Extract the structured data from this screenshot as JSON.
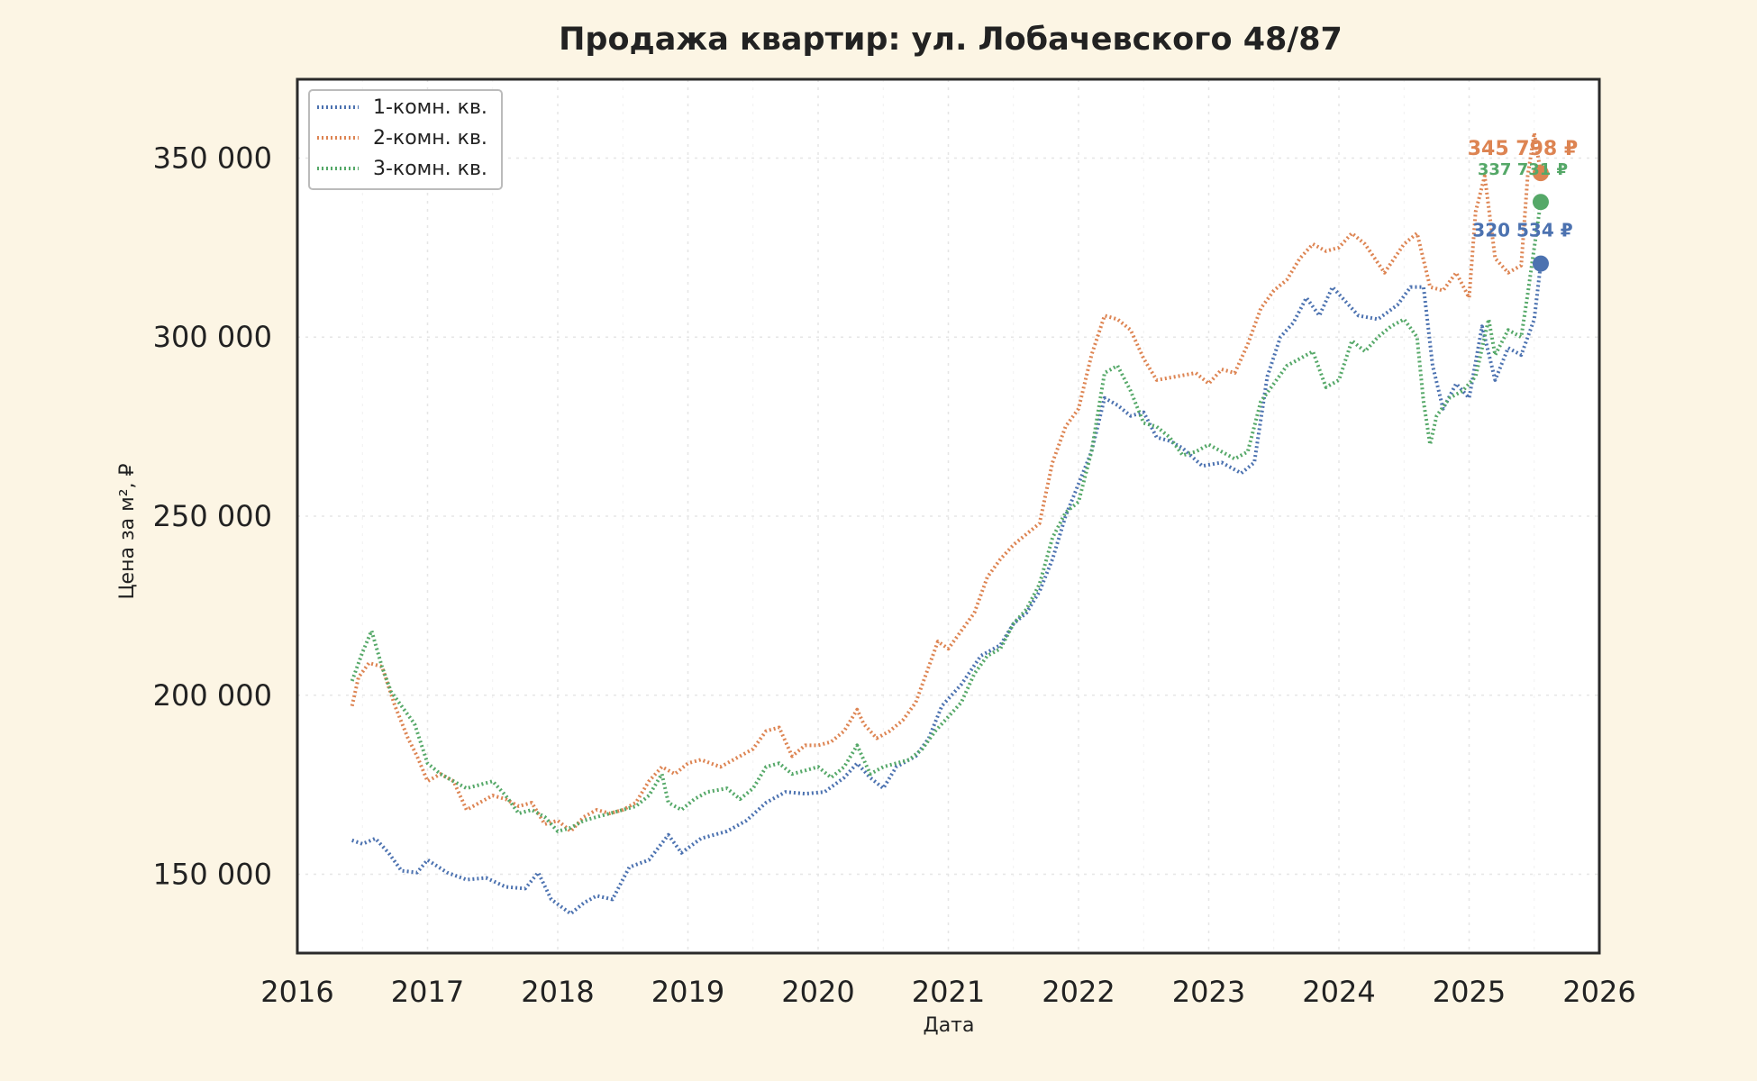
{
  "chart_data": {
    "type": "line",
    "title": "Продажа квартир: ул. Лобачевского 48/87",
    "xlabel": "Дата",
    "ylabel": "Цена за м², ₽",
    "xlim": [
      2016,
      2026
    ],
    "ylim": [
      128000,
      372000
    ],
    "x_ticks": [
      2016,
      2017,
      2018,
      2019,
      2020,
      2021,
      2022,
      2023,
      2024,
      2025,
      2026
    ],
    "y_ticks": [
      150000,
      200000,
      250000,
      300000,
      350000
    ],
    "y_tick_labels": [
      "150 000",
      "200 000",
      "250 000",
      "300 000",
      "350 000"
    ],
    "grid": true,
    "legend_position": "top-left",
    "line_style": "dotted",
    "series": [
      {
        "name": "1-комн. кв.",
        "color": "#4c72b0",
        "end_label": "320 534 ₽",
        "end_value": 320534,
        "points": [
          [
            2016.42,
            159500
          ],
          [
            2016.5,
            158500
          ],
          [
            2016.6,
            160000
          ],
          [
            2016.7,
            156000
          ],
          [
            2016.8,
            151000
          ],
          [
            2016.92,
            150500
          ],
          [
            2017.0,
            154000
          ],
          [
            2017.15,
            150500
          ],
          [
            2017.3,
            148500
          ],
          [
            2017.45,
            149000
          ],
          [
            2017.6,
            146500
          ],
          [
            2017.75,
            146000
          ],
          [
            2017.85,
            150500
          ],
          [
            2017.95,
            143000
          ],
          [
            2018.1,
            139000
          ],
          [
            2018.2,
            142000
          ],
          [
            2018.3,
            144000
          ],
          [
            2018.42,
            143000
          ],
          [
            2018.55,
            152000
          ],
          [
            2018.7,
            154000
          ],
          [
            2018.85,
            161000
          ],
          [
            2018.95,
            156000
          ],
          [
            2019.1,
            160000
          ],
          [
            2019.3,
            162000
          ],
          [
            2019.45,
            165000
          ],
          [
            2019.6,
            170000
          ],
          [
            2019.75,
            173000
          ],
          [
            2019.9,
            172500
          ],
          [
            2020.05,
            173000
          ],
          [
            2020.2,
            177000
          ],
          [
            2020.3,
            181000
          ],
          [
            2020.4,
            177000
          ],
          [
            2020.5,
            174000
          ],
          [
            2020.6,
            180000
          ],
          [
            2020.75,
            183000
          ],
          [
            2020.85,
            188000
          ],
          [
            2020.95,
            197000
          ],
          [
            2021.1,
            203000
          ],
          [
            2021.25,
            211000
          ],
          [
            2021.4,
            214000
          ],
          [
            2021.5,
            220000
          ],
          [
            2021.6,
            223000
          ],
          [
            2021.7,
            229000
          ],
          [
            2021.8,
            238000
          ],
          [
            2021.9,
            250000
          ],
          [
            2022.0,
            259000
          ],
          [
            2022.1,
            268000
          ],
          [
            2022.2,
            283000
          ],
          [
            2022.3,
            281000
          ],
          [
            2022.4,
            278000
          ],
          [
            2022.5,
            279000
          ],
          [
            2022.6,
            272000
          ],
          [
            2022.7,
            271000
          ],
          [
            2022.8,
            269000
          ],
          [
            2022.95,
            264000
          ],
          [
            2023.1,
            265000
          ],
          [
            2023.25,
            262000
          ],
          [
            2023.35,
            265000
          ],
          [
            2023.45,
            289000
          ],
          [
            2023.55,
            300000
          ],
          [
            2023.65,
            304000
          ],
          [
            2023.75,
            311000
          ],
          [
            2023.85,
            306000
          ],
          [
            2023.95,
            314000
          ],
          [
            2024.05,
            310000
          ],
          [
            2024.15,
            306000
          ],
          [
            2024.3,
            305000
          ],
          [
            2024.45,
            309000
          ],
          [
            2024.55,
            314000
          ],
          [
            2024.65,
            314000
          ],
          [
            2024.72,
            292000
          ],
          [
            2024.8,
            280000
          ],
          [
            2024.9,
            287000
          ],
          [
            2025.0,
            283000
          ],
          [
            2025.1,
            303000
          ],
          [
            2025.2,
            288000
          ],
          [
            2025.3,
            297000
          ],
          [
            2025.4,
            295000
          ],
          [
            2025.5,
            305000
          ],
          [
            2025.55,
            320534
          ]
        ]
      },
      {
        "name": "2-комн. кв.",
        "color": "#dd8452",
        "end_label": "345 798 ₽",
        "end_value": 345798,
        "points": [
          [
            2016.42,
            197000
          ],
          [
            2016.47,
            205000
          ],
          [
            2016.55,
            209000
          ],
          [
            2016.65,
            208000
          ],
          [
            2016.75,
            197000
          ],
          [
            2016.85,
            188000
          ],
          [
            2016.92,
            183000
          ],
          [
            2017.0,
            176000
          ],
          [
            2017.1,
            178000
          ],
          [
            2017.2,
            176000
          ],
          [
            2017.3,
            168000
          ],
          [
            2017.4,
            170000
          ],
          [
            2017.5,
            172000
          ],
          [
            2017.6,
            171000
          ],
          [
            2017.7,
            169000
          ],
          [
            2017.8,
            170000
          ],
          [
            2017.9,
            164000
          ],
          [
            2018.0,
            165000
          ],
          [
            2018.1,
            162000
          ],
          [
            2018.2,
            166000
          ],
          [
            2018.3,
            168000
          ],
          [
            2018.4,
            167000
          ],
          [
            2018.5,
            168000
          ],
          [
            2018.6,
            170000
          ],
          [
            2018.7,
            176000
          ],
          [
            2018.8,
            180000
          ],
          [
            2018.9,
            178000
          ],
          [
            2019.0,
            181000
          ],
          [
            2019.1,
            182000
          ],
          [
            2019.25,
            180000
          ],
          [
            2019.4,
            183000
          ],
          [
            2019.5,
            185000
          ],
          [
            2019.6,
            190000
          ],
          [
            2019.7,
            191000
          ],
          [
            2019.8,
            183000
          ],
          [
            2019.9,
            186000
          ],
          [
            2020.0,
            186000
          ],
          [
            2020.1,
            187000
          ],
          [
            2020.2,
            190000
          ],
          [
            2020.3,
            196000
          ],
          [
            2020.35,
            192000
          ],
          [
            2020.45,
            188000
          ],
          [
            2020.55,
            190000
          ],
          [
            2020.65,
            193000
          ],
          [
            2020.75,
            198000
          ],
          [
            2020.85,
            208000
          ],
          [
            2020.92,
            215000
          ],
          [
            2021.0,
            213000
          ],
          [
            2021.1,
            218000
          ],
          [
            2021.2,
            223000
          ],
          [
            2021.3,
            233000
          ],
          [
            2021.4,
            238000
          ],
          [
            2021.5,
            242000
          ],
          [
            2021.6,
            245000
          ],
          [
            2021.7,
            248000
          ],
          [
            2021.8,
            265000
          ],
          [
            2021.9,
            275000
          ],
          [
            2022.0,
            280000
          ],
          [
            2022.1,
            295000
          ],
          [
            2022.2,
            306000
          ],
          [
            2022.3,
            305000
          ],
          [
            2022.4,
            302000
          ],
          [
            2022.5,
            294000
          ],
          [
            2022.6,
            288000
          ],
          [
            2022.75,
            289000
          ],
          [
            2022.9,
            290000
          ],
          [
            2023.0,
            287000
          ],
          [
            2023.1,
            291000
          ],
          [
            2023.2,
            290000
          ],
          [
            2023.3,
            298000
          ],
          [
            2023.4,
            308000
          ],
          [
            2023.5,
            313000
          ],
          [
            2023.6,
            316000
          ],
          [
            2023.7,
            322000
          ],
          [
            2023.8,
            326000
          ],
          [
            2023.9,
            324000
          ],
          [
            2024.0,
            325000
          ],
          [
            2024.1,
            329000
          ],
          [
            2024.2,
            326000
          ],
          [
            2024.35,
            318000
          ],
          [
            2024.5,
            326000
          ],
          [
            2024.6,
            329000
          ],
          [
            2024.7,
            314000
          ],
          [
            2024.8,
            313000
          ],
          [
            2024.9,
            318000
          ],
          [
            2025.0,
            311000
          ],
          [
            2025.05,
            335000
          ],
          [
            2025.12,
            345000
          ],
          [
            2025.2,
            322000
          ],
          [
            2025.3,
            318000
          ],
          [
            2025.4,
            320000
          ],
          [
            2025.45,
            345000
          ],
          [
            2025.5,
            357000
          ],
          [
            2025.55,
            345798
          ]
        ]
      },
      {
        "name": "3-комн. кв.",
        "color": "#55a868",
        "end_label": "337 731 ₽",
        "end_value": 337731,
        "points": [
          [
            2016.42,
            204000
          ],
          [
            2016.5,
            212000
          ],
          [
            2016.57,
            218000
          ],
          [
            2016.65,
            208000
          ],
          [
            2016.72,
            201000
          ],
          [
            2016.8,
            197000
          ],
          [
            2016.9,
            192000
          ],
          [
            2017.0,
            181000
          ],
          [
            2017.1,
            178000
          ],
          [
            2017.2,
            176000
          ],
          [
            2017.3,
            174000
          ],
          [
            2017.4,
            175000
          ],
          [
            2017.5,
            176000
          ],
          [
            2017.6,
            172000
          ],
          [
            2017.7,
            167000
          ],
          [
            2017.8,
            168000
          ],
          [
            2017.9,
            166000
          ],
          [
            2018.0,
            162000
          ],
          [
            2018.1,
            163000
          ],
          [
            2018.2,
            165000
          ],
          [
            2018.3,
            166000
          ],
          [
            2018.4,
            167000
          ],
          [
            2018.5,
            168000
          ],
          [
            2018.6,
            169000
          ],
          [
            2018.7,
            172000
          ],
          [
            2018.8,
            178000
          ],
          [
            2018.85,
            170000
          ],
          [
            2018.95,
            168000
          ],
          [
            2019.05,
            171000
          ],
          [
            2019.15,
            173000
          ],
          [
            2019.3,
            174000
          ],
          [
            2019.4,
            171000
          ],
          [
            2019.5,
            174000
          ],
          [
            2019.6,
            180000
          ],
          [
            2019.7,
            181000
          ],
          [
            2019.8,
            178000
          ],
          [
            2019.9,
            179000
          ],
          [
            2020.0,
            180000
          ],
          [
            2020.1,
            177000
          ],
          [
            2020.2,
            180000
          ],
          [
            2020.3,
            186000
          ],
          [
            2020.4,
            178000
          ],
          [
            2020.5,
            180000
          ],
          [
            2020.6,
            181000
          ],
          [
            2020.7,
            182000
          ],
          [
            2020.8,
            185000
          ],
          [
            2020.9,
            190000
          ],
          [
            2021.0,
            194000
          ],
          [
            2021.1,
            198000
          ],
          [
            2021.2,
            206000
          ],
          [
            2021.3,
            211000
          ],
          [
            2021.4,
            213000
          ],
          [
            2021.5,
            220000
          ],
          [
            2021.6,
            224000
          ],
          [
            2021.7,
            231000
          ],
          [
            2021.8,
            244000
          ],
          [
            2021.9,
            251000
          ],
          [
            2022.0,
            254000
          ],
          [
            2022.1,
            268000
          ],
          [
            2022.2,
            290000
          ],
          [
            2022.3,
            292000
          ],
          [
            2022.4,
            285000
          ],
          [
            2022.5,
            276000
          ],
          [
            2022.6,
            275000
          ],
          [
            2022.7,
            272000
          ],
          [
            2022.8,
            267000
          ],
          [
            2022.9,
            268000
          ],
          [
            2023.0,
            270000
          ],
          [
            2023.1,
            268000
          ],
          [
            2023.2,
            266000
          ],
          [
            2023.3,
            268000
          ],
          [
            2023.4,
            282000
          ],
          [
            2023.5,
            287000
          ],
          [
            2023.6,
            292000
          ],
          [
            2023.7,
            294000
          ],
          [
            2023.8,
            296000
          ],
          [
            2023.9,
            286000
          ],
          [
            2024.0,
            288000
          ],
          [
            2024.1,
            299000
          ],
          [
            2024.2,
            296000
          ],
          [
            2024.3,
            300000
          ],
          [
            2024.4,
            303000
          ],
          [
            2024.5,
            305000
          ],
          [
            2024.6,
            300000
          ],
          [
            2024.65,
            282000
          ],
          [
            2024.7,
            270000
          ],
          [
            2024.75,
            278000
          ],
          [
            2024.85,
            283000
          ],
          [
            2024.95,
            285000
          ],
          [
            2025.05,
            289000
          ],
          [
            2025.15,
            305000
          ],
          [
            2025.2,
            295000
          ],
          [
            2025.3,
            302000
          ],
          [
            2025.4,
            300000
          ],
          [
            2025.45,
            312000
          ],
          [
            2025.5,
            325000
          ],
          [
            2025.55,
            337731
          ]
        ]
      }
    ]
  }
}
